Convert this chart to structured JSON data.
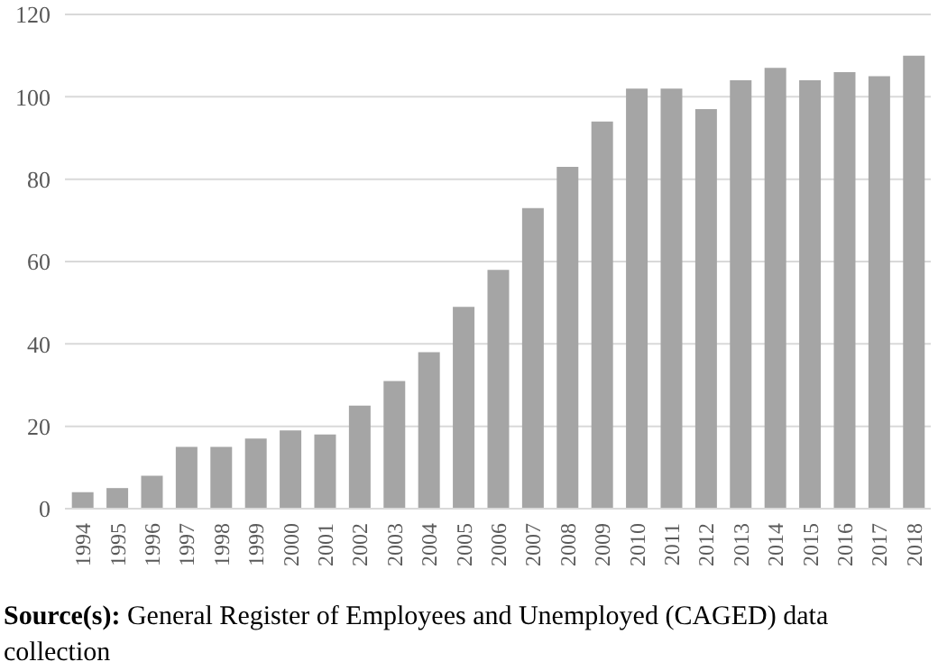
{
  "chart_data": {
    "type": "bar",
    "categories": [
      "1994",
      "1995",
      "1996",
      "1997",
      "1998",
      "1999",
      "2000",
      "2001",
      "2002",
      "2003",
      "2004",
      "2005",
      "2006",
      "2007",
      "2008",
      "2009",
      "2010",
      "2011",
      "2012",
      "2013",
      "2014",
      "2015",
      "2016",
      "2017",
      "2018"
    ],
    "values": [
      4,
      5,
      8,
      15,
      15,
      17,
      19,
      18,
      25,
      31,
      38,
      49,
      58,
      73,
      83,
      94,
      102,
      102,
      97,
      104,
      107,
      104,
      106,
      105,
      110
    ],
    "color": "#a5a5a5",
    "ylim": [
      0,
      120
    ],
    "yticks": [
      0,
      20,
      40,
      60,
      80,
      100,
      120
    ],
    "grid": "y",
    "annotations": [
      "Source(s): General Register of Employees and Unemployed (CAGED) data collection"
    ]
  }
}
